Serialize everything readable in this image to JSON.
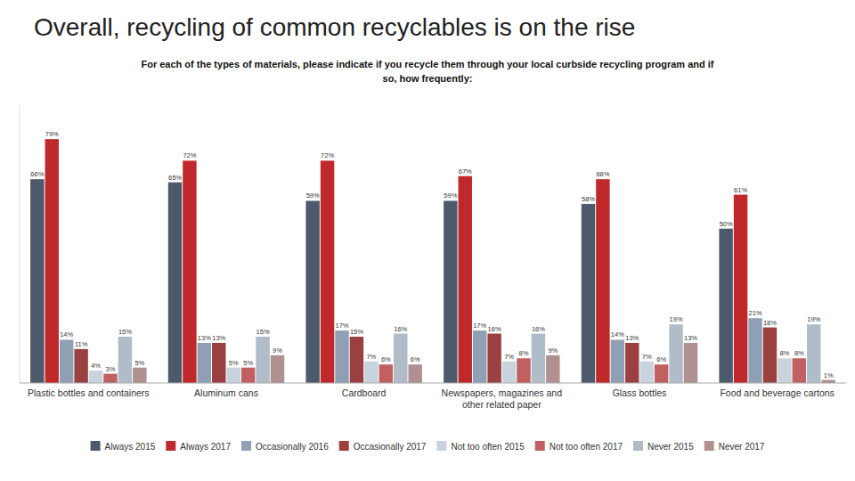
{
  "chart_data": {
    "type": "bar",
    "title": "Overall, recycling of common recyclables is on the rise",
    "subtitle": "For each of the types of materials, please indicate if you recycle them through your local curbside recycling program and if\nso, how frequently:",
    "categories": [
      "Plastic bottles and containers",
      "Aluminum cans",
      "Cardboard",
      "Newspapers, magazines and\nother related paper",
      "Glass bottles",
      "Food and beverage cartons"
    ],
    "series": [
      {
        "name": "Always 2015",
        "color": "#4d5a6b",
        "values": [
          66,
          65,
          59,
          59,
          58,
          50
        ],
        "value_labels": [
          "66%",
          "65%",
          "59%",
          "59%",
          "58%",
          "50%"
        ]
      },
      {
        "name": "Always 2017",
        "color": "#c0292b",
        "values": [
          79,
          72,
          72,
          67,
          66,
          61
        ],
        "value_labels": [
          "79%",
          "72%",
          "72%",
          "67%",
          "66%",
          "61%"
        ]
      },
      {
        "name": "Occasionally 2016",
        "color": "#8fa0b4",
        "values": [
          14,
          13,
          17,
          17,
          14,
          21
        ],
        "value_labels": [
          "14%",
          "13%",
          "17%",
          "17%",
          "14%",
          "21%"
        ]
      },
      {
        "name": "Occasionally 2017",
        "color": "#9b4040",
        "values": [
          11,
          13,
          15,
          16,
          13,
          18
        ],
        "value_labels": [
          "11%",
          "13%",
          "15%",
          "16%",
          "13%",
          "18%"
        ]
      },
      {
        "name": "Not too often 2015",
        "color": "#c8d3de",
        "values": [
          4,
          5,
          7,
          7,
          7,
          8
        ],
        "value_labels": [
          "4%",
          "5%",
          "7%",
          "7%",
          "7%",
          "8%"
        ]
      },
      {
        "name": "Not too often 2017",
        "color": "#c06060",
        "values": [
          3,
          5,
          6,
          8,
          6,
          8
        ],
        "value_labels": [
          "3%",
          "5%",
          "6%",
          "8%",
          "6%",
          "8%"
        ]
      },
      {
        "name": "Never 2015",
        "color": "#b0bcc8",
        "values": [
          15,
          15,
          16,
          16,
          19,
          19
        ],
        "value_labels": [
          "15%",
          "15%",
          "16%",
          "16%",
          "19%",
          "19%"
        ]
      },
      {
        "name": "Never 2017",
        "color": "#b09090",
        "values": [
          5,
          9,
          6,
          9,
          13,
          1
        ],
        "value_labels": [
          "5%",
          "9%",
          "6%",
          "9%",
          "13%",
          "1%"
        ]
      }
    ],
    "ylim": [
      0,
      90
    ],
    "tick_labels": "x",
    "data_labels": true,
    "grid": false,
    "legend": "bottom"
  }
}
